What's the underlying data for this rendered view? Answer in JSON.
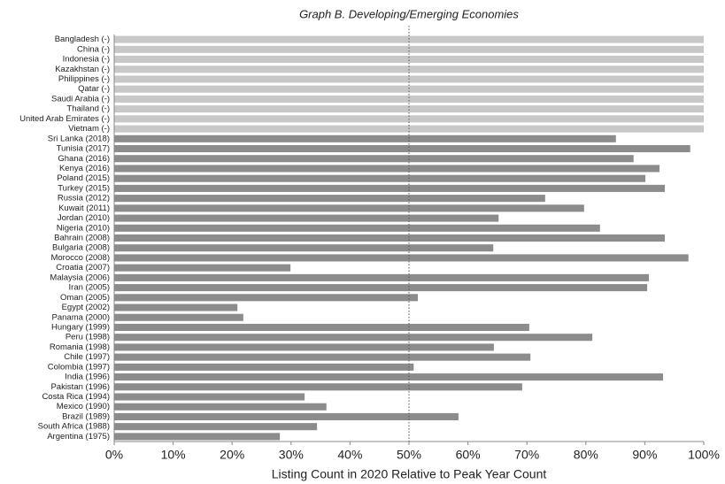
{
  "chart_data": {
    "type": "bar",
    "orientation": "horizontal",
    "title": "Graph B. Developing/Emerging Economies",
    "x_label": "Listing Count in 2020 Relative to Peak Year Count",
    "categories": [
      "Bangladesh (-)",
      "China (-)",
      "Indonesia (-)",
      "Kazakhstan (-)",
      "Philippines (-)",
      "Qatar (-)",
      "Saudi Arabia (-)",
      "Thailand (-)",
      "United Arab Emirates (-)",
      "Vietnam (-)",
      "Sri Lanka (2018)",
      "Tunisia (2017)",
      "Ghana (2016)",
      "Kenya (2016)",
      "Poland (2015)",
      "Turkey (2015)",
      "Russia (2012)",
      "Kuwait (2011)",
      "Jordan (2010)",
      "Nigeria (2010)",
      "Bahrain (2008)",
      "Bulgaria (2008)",
      "Morocco (2008)",
      "Croatia (2007)",
      "Malaysia (2006)",
      "Iran (2005)",
      "Oman (2005)",
      "Egypt (2002)",
      "Panama (2000)",
      "Hungary (1999)",
      "Peru (1998)",
      "Romania (1998)",
      "Chile (1997)",
      "Colombia (1997)",
      "India (1996)",
      "Pakistan (1996)",
      "Costa Rica (1994)",
      "Mexico (1990)",
      "Brazil (1989)",
      "South Africa (1988)",
      "Argentina (1975)"
    ],
    "values": [
      100,
      100,
      100,
      100,
      100,
      100,
      100,
      100,
      100,
      100,
      85.1,
      97.7,
      88.1,
      92.5,
      90.1,
      93.4,
      73.1,
      79.7,
      65.2,
      82.4,
      93.4,
      64.3,
      97.4,
      29.9,
      90.7,
      90.4,
      51.5,
      20.9,
      21.9,
      70.4,
      81.1,
      64.4,
      70.6,
      50.8,
      93.1,
      69.2,
      32.3,
      36,
      58.4,
      34.4,
      28.1
    ],
    "colors": [
      "#c8c8c8",
      "#c8c8c8",
      "#c8c8c8",
      "#c8c8c8",
      "#c8c8c8",
      "#c8c8c8",
      "#c8c8c8",
      "#c8c8c8",
      "#c8c8c8",
      "#c8c8c8",
      "#8c8c8c",
      "#8c8c8c",
      "#8c8c8c",
      "#8c8c8c",
      "#8c8c8c",
      "#8c8c8c",
      "#8c8c8c",
      "#8c8c8c",
      "#8c8c8c",
      "#8c8c8c",
      "#8c8c8c",
      "#8c8c8c",
      "#8c8c8c",
      "#8c8c8c",
      "#8c8c8c",
      "#8c8c8c",
      "#8c8c8c",
      "#8c8c8c",
      "#8c8c8c",
      "#8c8c8c",
      "#8c8c8c",
      "#8c8c8c",
      "#8c8c8c",
      "#8c8c8c",
      "#8c8c8c",
      "#8c8c8c",
      "#8c8c8c",
      "#8c8c8c",
      "#8c8c8c",
      "#8c8c8c",
      "#8c8c8c"
    ],
    "xlim": [
      0,
      100
    ],
    "xticks": [
      {
        "value": 0,
        "label": "0%"
      },
      {
        "value": 10,
        "label": "10%"
      },
      {
        "value": 20,
        "label": "20%"
      },
      {
        "value": 30,
        "label": "30%"
      },
      {
        "value": 40,
        "label": "40%"
      },
      {
        "value": 50,
        "label": "50%"
      },
      {
        "value": 60,
        "label": "60%"
      },
      {
        "value": 70,
        "label": "70%"
      },
      {
        "value": 80,
        "label": "80%"
      },
      {
        "value": 90,
        "label": "90%"
      },
      {
        "value": 100,
        "label": "100%"
      }
    ],
    "reference_line": 50
  }
}
